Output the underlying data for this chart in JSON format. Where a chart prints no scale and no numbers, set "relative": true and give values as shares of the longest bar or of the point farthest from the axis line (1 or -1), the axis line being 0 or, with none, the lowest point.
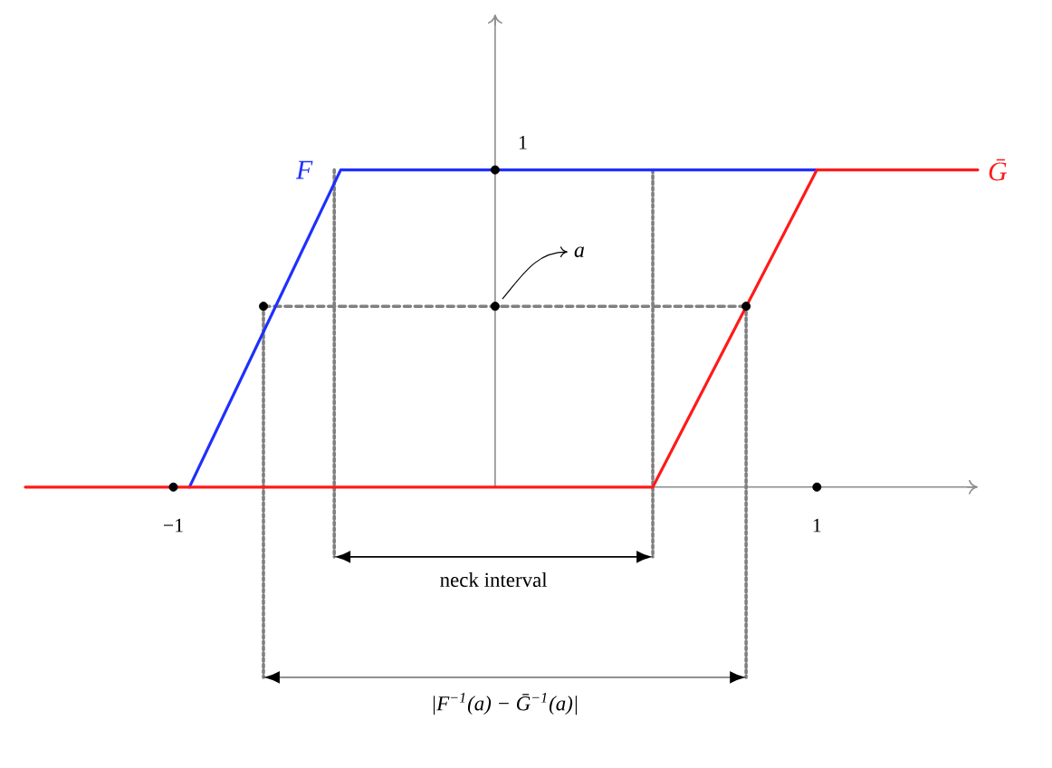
{
  "chart_data": {
    "type": "line",
    "relative": true,
    "xlim": [
      -1.46,
      1.5
    ],
    "xticks": [
      {
        "value": -1,
        "label": "−1"
      },
      1
    ],
    "series": [
      {
        "x": [
          -0.5,
          -0.5
        ],
        "values": [
          1,
          -0.22
        ],
        "color": "#808080",
        "line_style": "dotted"
      },
      {
        "x": [
          0.49,
          0.49
        ],
        "values": [
          1,
          -0.22
        ],
        "color": "#808080",
        "line_style": "dotted"
      },
      {
        "x": [
          -0.72,
          -0.72
        ],
        "values": [
          0.57,
          -0.6
        ],
        "color": "#808080",
        "line_style": "dotted"
      },
      {
        "x": [
          0.78,
          0.78
        ],
        "values": [
          0.57,
          -0.6
        ],
        "color": "#808080",
        "line_style": "dotted"
      },
      {
        "x": [
          -0.72,
          0.78
        ],
        "values": [
          0.57,
          0.57
        ],
        "color": "#808080",
        "line_style": "dashed"
      },
      {
        "name": "F",
        "x": [
          -0.95,
          -0.48,
          1.0
        ],
        "values": [
          0,
          1,
          1
        ],
        "color": "#1f2fff"
      },
      {
        "name": "Ḡ",
        "x": [
          -1.46,
          0.49,
          1.0,
          1.5
        ],
        "values": [
          0,
          0,
          1,
          1
        ],
        "color": "#ff1a1a"
      },
      {
        "type": "scatter",
        "x": [
          -1,
          1,
          0,
          0,
          -0.72,
          0.78
        ],
        "values": [
          0,
          0,
          1,
          0.57,
          0.57,
          0.57
        ],
        "color": "#000000",
        "marker": "circle"
      }
    ],
    "annotations": [
      {
        "text": "1",
        "x": 0,
        "y": 1
      },
      {
        "text": "a",
        "x": 0,
        "y": 0.57
      },
      "neck interval",
      "|F$^{−1}$(a) − Ḡ$^{−1}$(a)|"
    ]
  }
}
